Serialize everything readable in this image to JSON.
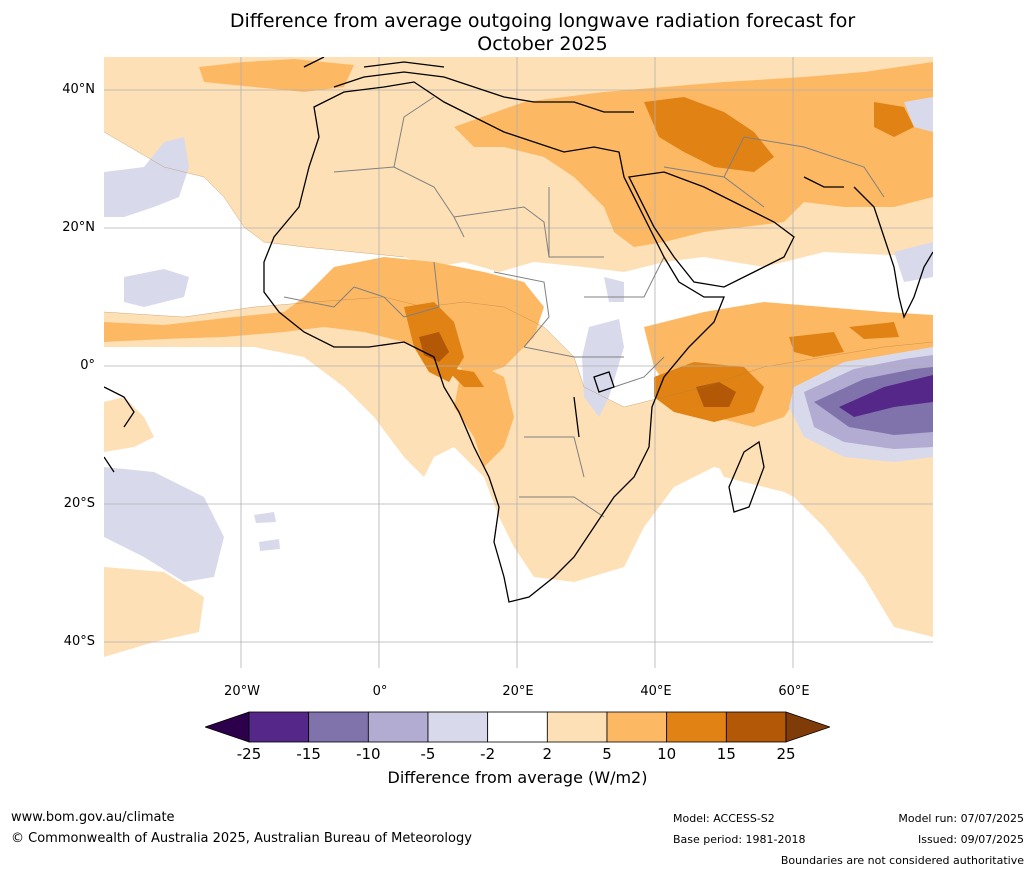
{
  "title_line1": "Difference from average outgoing longwave radiation forecast for",
  "title_line2": "October 2025",
  "lat_labels": [
    "40°N",
    "20°N",
    "0°",
    "20°S",
    "40°S"
  ],
  "lon_labels": [
    "20°W",
    "0°",
    "20°E",
    "40°E",
    "60°E"
  ],
  "colorbar": {
    "ticks": [
      "-25",
      "-15",
      "-10",
      "-5",
      "-2",
      "2",
      "5",
      "10",
      "15",
      "25"
    ],
    "label": "Difference from average (W/m2)",
    "colors": [
      "#2d004b",
      "#542788",
      "#8073ac",
      "#b2abd2",
      "#d8daeb",
      "#ffffff",
      "#fee0b6",
      "#fdb863",
      "#e08214",
      "#b35806",
      "#7f3b08"
    ]
  },
  "footer": {
    "website": "www.bom.gov.au/climate",
    "copyright": "© Commonwealth of Australia 2025, Australian Bureau of Meteorology",
    "model": "Model: ACCESS-S2",
    "base_period": "Base period: 1981-2018",
    "model_run": "Model run: 07/07/2025",
    "issued": "Issued: 09/07/2025",
    "disclaimer": "Boundaries are not considered authoritative"
  },
  "icons": [
    "colorbar-extend-low-arrow",
    "colorbar-extend-high-arrow"
  ]
}
